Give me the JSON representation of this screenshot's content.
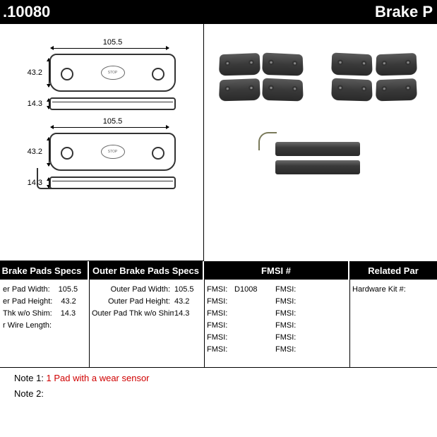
{
  "header": {
    "part_number": ".10080",
    "category": "Brake P"
  },
  "dimensions": {
    "width": "105.5",
    "height": "43.2",
    "thickness": "14.3"
  },
  "spec_headers": {
    "inner": "Brake Pads Specs",
    "outer": "Outer Brake Pads Specs",
    "fmsi": "FMSI #",
    "related": "Related Par"
  },
  "inner_specs": [
    {
      "label": "er Pad Width:",
      "value": "105.5"
    },
    {
      "label": "er Pad Height:",
      "value": "43.2"
    },
    {
      "label": "Thk w/o Shim:",
      "value": "14.3"
    },
    {
      "label": "r Wire Length:",
      "value": ""
    }
  ],
  "outer_specs": [
    {
      "label": "Outer Pad Width:",
      "value": "105.5"
    },
    {
      "label": "Outer Pad Height:",
      "value": "43.2"
    },
    {
      "label": "Outer Pad Thk w/o Shim:",
      "value": "14.3"
    }
  ],
  "fmsi_left": [
    {
      "label": "FMSI:",
      "value": "D1008"
    },
    {
      "label": "FMSI:",
      "value": ""
    },
    {
      "label": "FMSI:",
      "value": ""
    },
    {
      "label": "FMSI:",
      "value": ""
    },
    {
      "label": "FMSI:",
      "value": ""
    },
    {
      "label": "FMSI:",
      "value": ""
    }
  ],
  "fmsi_right": [
    {
      "label": "FMSI:",
      "value": ""
    },
    {
      "label": "FMSI:",
      "value": ""
    },
    {
      "label": "FMSI:",
      "value": ""
    },
    {
      "label": "FMSI:",
      "value": ""
    },
    {
      "label": "FMSI:",
      "value": ""
    },
    {
      "label": "FMSI:",
      "value": ""
    }
  ],
  "related": [
    {
      "label": "Hardware Kit #:",
      "value": ""
    }
  ],
  "notes": {
    "note1_label": "Note 1:",
    "note1_text": "1 Pad with a wear sensor",
    "note2_label": "Note 2:",
    "note2_text": ""
  },
  "colors": {
    "header_bg": "#000000",
    "header_fg": "#ffffff",
    "note_highlight": "#d00000"
  }
}
